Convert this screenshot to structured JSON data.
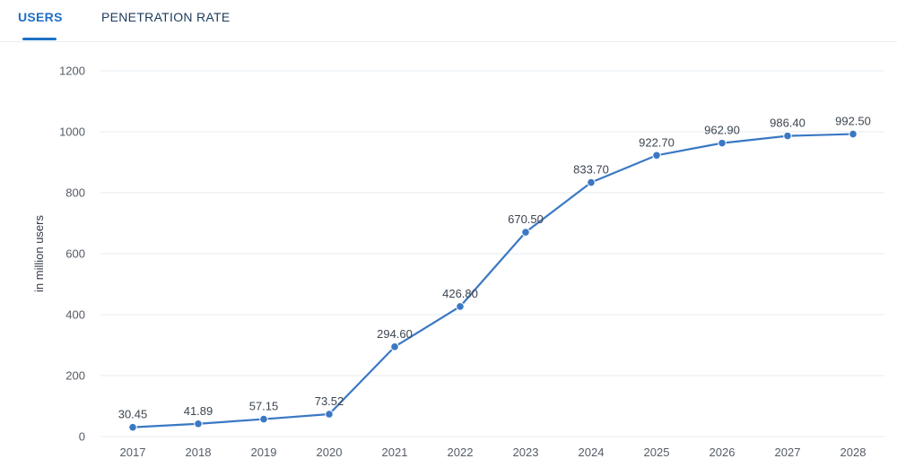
{
  "tabs": [
    {
      "label": "USERS",
      "active": true
    },
    {
      "label": "PENETRATION RATE",
      "active": false
    }
  ],
  "colors": {
    "accent": "#1f6fc5",
    "line": "#3a78c4"
  },
  "chart_data": {
    "type": "line",
    "ylabel": "in million users",
    "ylim": [
      0,
      1200
    ],
    "yticks": [
      0,
      200,
      400,
      600,
      800,
      1000,
      1200
    ],
    "grid": true,
    "categories": [
      "2017",
      "2018",
      "2019",
      "2020",
      "2021",
      "2022",
      "2023",
      "2024",
      "2025",
      "2026",
      "2027",
      "2028"
    ],
    "series": [
      {
        "values": [
          30.45,
          41.89,
          57.15,
          73.52,
          294.6,
          426.8,
          670.5,
          833.7,
          922.7,
          962.9,
          986.4,
          992.5
        ],
        "labels": [
          "30.45",
          "41.89",
          "57.15",
          "73.52",
          "294.60",
          "426.80",
          "670.50",
          "833.70",
          "922.70",
          "962.90",
          "986.40",
          "992.50"
        ]
      }
    ]
  }
}
